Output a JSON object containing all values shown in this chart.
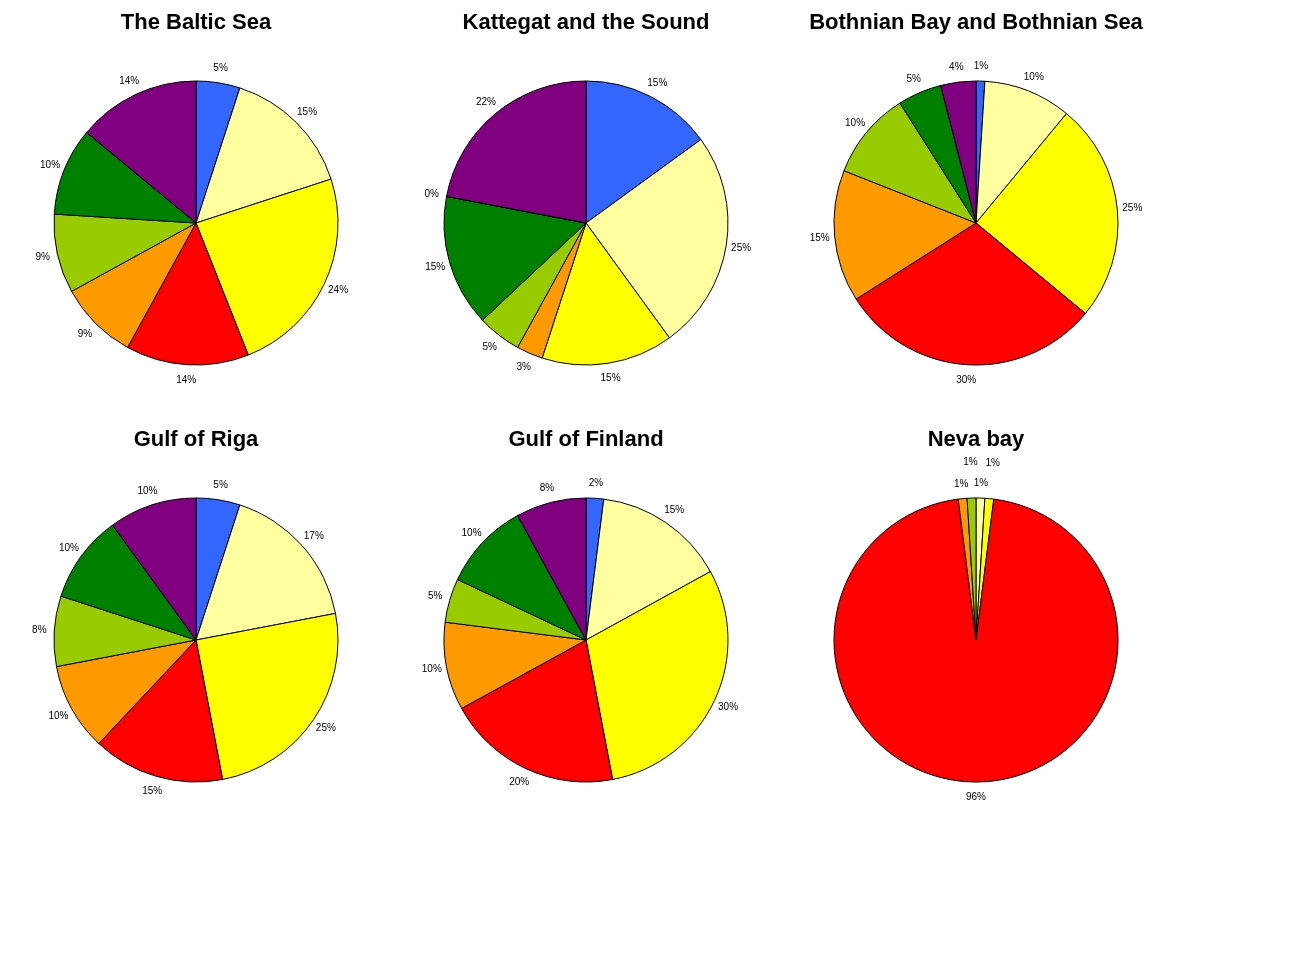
{
  "chart_data": [
    {
      "type": "pie",
      "title": "The Baltic Sea",
      "categories": [
        null,
        null,
        null,
        null,
        null,
        null,
        null,
        null
      ],
      "values": [
        5,
        15,
        24,
        14,
        9,
        9,
        10,
        14
      ],
      "value_labels": [
        "5%",
        "15%",
        "24%",
        "14%",
        "9%",
        "9%",
        "10%",
        "14%"
      ],
      "colors": [
        "#3366ff",
        "#ffffa0",
        "#ffff00",
        "#ff0000",
        "#ff9900",
        "#99cc00",
        "#008000",
        "#800080"
      ]
    },
    {
      "type": "pie",
      "title": "Kattegat and the Sound",
      "categories": [
        null,
        null,
        null,
        null,
        null,
        null,
        null,
        null
      ],
      "values": [
        15,
        25,
        15,
        3,
        5,
        15,
        0,
        22
      ],
      "value_labels": [
        "15%",
        "25%",
        "15%",
        "3%",
        "5%",
        "15%",
        "0%",
        "22%"
      ],
      "colors": [
        "#3366ff",
        "#ffffa0",
        "#ffff00",
        "#ff9900",
        "#99cc00",
        "#008000",
        "#33ccff",
        "#800080"
      ]
    },
    {
      "type": "pie",
      "title": "Bothnian Bay and Bothnian Sea",
      "categories": [
        null,
        null,
        null,
        null,
        null,
        null,
        null,
        null
      ],
      "values": [
        1,
        10,
        25,
        30,
        15,
        10,
        5,
        4
      ],
      "value_labels": [
        "1%",
        "10%",
        "25%",
        "30%",
        "15%",
        "10%",
        "5%",
        "4%"
      ],
      "colors": [
        "#3366ff",
        "#ffffa0",
        "#ffff00",
        "#ff0000",
        "#ff9900",
        "#99cc00",
        "#008000",
        "#800080"
      ]
    },
    {
      "type": "pie",
      "title": "Gulf of Riga",
      "categories": [
        null,
        null,
        null,
        null,
        null,
        null,
        null,
        null
      ],
      "values": [
        5,
        17,
        25,
        15,
        10,
        8,
        10,
        10
      ],
      "value_labels": [
        "5%",
        "17%",
        "25%",
        "15%",
        "10%",
        "8%",
        "10%",
        "10%"
      ],
      "colors": [
        "#3366ff",
        "#ffffa0",
        "#ffff00",
        "#ff0000",
        "#ff9900",
        "#99cc00",
        "#008000",
        "#800080"
      ]
    },
    {
      "type": "pie",
      "title": "Gulf of Finland",
      "categories": [
        null,
        null,
        null,
        null,
        null,
        null,
        null,
        null
      ],
      "values": [
        2,
        15,
        30,
        20,
        10,
        5,
        10,
        8
      ],
      "value_labels": [
        "2%",
        "15%",
        "30%",
        "20%",
        "10%",
        "5%",
        "10%",
        "8%"
      ],
      "colors": [
        "#3366ff",
        "#ffffa0",
        "#ffff00",
        "#ff0000",
        "#ff9900",
        "#99cc00",
        "#008000",
        "#800080"
      ]
    },
    {
      "type": "pie",
      "title": "Neva bay",
      "categories": [
        null,
        null,
        null,
        null,
        null
      ],
      "values": [
        1,
        1,
        96,
        1,
        1
      ],
      "value_labels": [
        "1%",
        "1%",
        "96%",
        "1%",
        "1%"
      ],
      "colors": [
        "#ffffa0",
        "#ffff00",
        "#ff0000",
        "#ff9900",
        "#99cc00"
      ]
    }
  ]
}
